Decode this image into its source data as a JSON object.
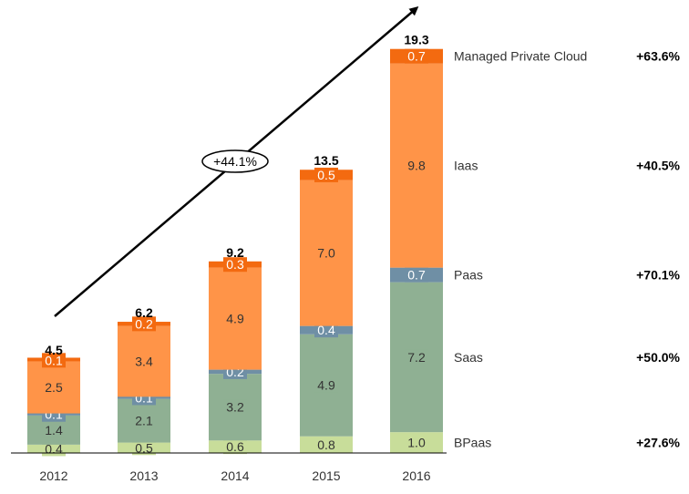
{
  "chart_data": {
    "type": "bar",
    "stacked": true,
    "categories": [
      "2012",
      "2013",
      "2014",
      "2015",
      "2016"
    ],
    "series": [
      {
        "name": "BPaas",
        "values": [
          0.4,
          0.5,
          0.6,
          0.8,
          1.0
        ],
        "color": "#c8dd9a",
        "text_color": "#333333",
        "growth": "+27.6%"
      },
      {
        "name": "Saas",
        "values": [
          1.4,
          2.1,
          3.2,
          4.9,
          7.2
        ],
        "color": "#8fb093",
        "text_color": "#333333",
        "growth": "+50.0%"
      },
      {
        "name": "Paas",
        "values": [
          0.1,
          0.1,
          0.2,
          0.4,
          0.7
        ],
        "color": "#6f8fa5",
        "text_color": "#ffffff",
        "growth": "+70.1%"
      },
      {
        "name": "Iaas",
        "values": [
          2.5,
          3.4,
          4.9,
          7.0,
          9.8
        ],
        "color": "#ff9448",
        "text_color": "#333333",
        "growth": "+40.5%"
      },
      {
        "name": "Managed Private Cloud",
        "values": [
          0.1,
          0.2,
          0.3,
          0.5,
          0.7
        ],
        "color": "#f36a10",
        "text_color": "#ffffff",
        "growth": "+63.6%"
      }
    ],
    "totals": [
      "4.5",
      "6.2",
      "9.2",
      "13.5",
      "19.3"
    ],
    "overall_growth": "+44.1%",
    "ylim": [
      0,
      19.3
    ],
    "title": "",
    "xlabel": "",
    "ylabel": "",
    "grid": false,
    "legend": "right"
  }
}
